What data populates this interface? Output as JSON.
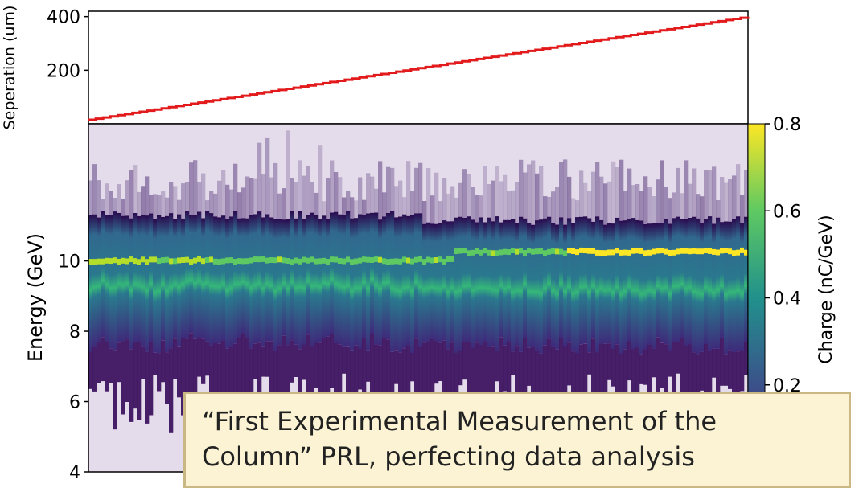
{
  "chart_data": [
    {
      "type": "line",
      "ylabel": "Seperation (um)",
      "ylabel_color": "#e8191b",
      "line_color": "#e31a1c",
      "yticks": [
        200,
        400
      ],
      "ylim": [
        0,
        420
      ],
      "series": [
        {
          "x": [
            0,
            1
          ],
          "y": [
            15,
            400
          ]
        }
      ]
    },
    {
      "type": "heatmap",
      "ylabel": "Energy (GeV)",
      "yticks": [
        4,
        6,
        8,
        10
      ],
      "ylim": [
        4,
        13.9
      ],
      "colorbar": {
        "label": "Charge (nC/GeV)",
        "ticks": [
          0.2,
          0.4,
          0.6,
          0.8
        ],
        "range": [
          0,
          0.8
        ],
        "colormap": [
          "#440154",
          "#3b528b",
          "#21918c",
          "#5ec962",
          "#fde725"
        ]
      },
      "features": {
        "bright_band_energy": 10.0,
        "band_upper_edge": 11.3,
        "band_lower_edge": 7.6
      }
    }
  ],
  "callout": {
    "line1": "“First Experimental Measurement of the",
    "line2": "Column” PRL, perfecting data analysis"
  }
}
